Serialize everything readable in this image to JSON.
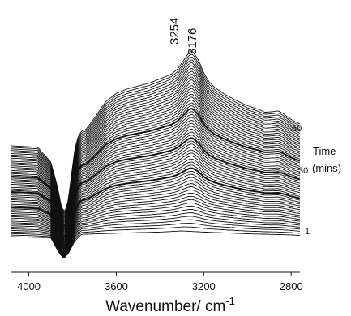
{
  "chart_data": {
    "type": "line",
    "title": "",
    "xlabel": "Wavenumber/ cm",
    "xlabel_superscript": "-1",
    "ylabel": "",
    "x_reversed": true,
    "xlim": [
      4080,
      2760
    ],
    "x_ticks": [
      4000,
      3600,
      3200,
      2800
    ],
    "z_axis": {
      "title_line1": "Time",
      "title_line2": "(mins)",
      "tick_labels": [
        "60",
        "30",
        "1"
      ]
    },
    "annotations": [
      "3254",
      "3176"
    ],
    "series_count": 60,
    "series_name_template": "t = {n} min",
    "profile": {
      "note": "relative absorbance profile of the final (60 min) spectrum",
      "x": [
        4080,
        3960,
        3900,
        3870,
        3850,
        3835,
        3820,
        3805,
        3790,
        3775,
        3760,
        3740,
        3700,
        3650,
        3600,
        3550,
        3500,
        3450,
        3400,
        3350,
        3320,
        3290,
        3270,
        3254,
        3240,
        3220,
        3200,
        3176,
        3150,
        3100,
        3050,
        3000,
        2950,
        2920,
        2880,
        2860,
        2840,
        2800,
        2760
      ],
      "y": [
        0.0,
        -0.02,
        -0.22,
        -0.55,
        -0.85,
        -0.9,
        -0.75,
        -0.4,
        -0.05,
        0.12,
        0.2,
        0.22,
        0.38,
        0.6,
        0.72,
        0.78,
        0.82,
        0.86,
        0.92,
        0.98,
        1.05,
        1.18,
        1.27,
        1.3,
        1.25,
        1.15,
        1.0,
        0.88,
        0.8,
        0.7,
        0.62,
        0.55,
        0.5,
        0.46,
        0.47,
        0.48,
        0.45,
        0.36,
        0.3
      ]
    },
    "baseline": {
      "note": "relative profile of the first (1 min) spectrum",
      "x": [
        4080,
        3900,
        3860,
        3840,
        3820,
        3790,
        3760,
        3600,
        3400,
        3300,
        3200,
        3000,
        2800,
        2760
      ],
      "y": [
        0.0,
        -0.02,
        -0.3,
        -0.38,
        -0.3,
        -0.08,
        0.04,
        0.06,
        0.08,
        0.1,
        0.08,
        0.05,
        0.03,
        0.02
      ]
    },
    "highlighted_series": [
      20,
      30,
      40
    ]
  }
}
